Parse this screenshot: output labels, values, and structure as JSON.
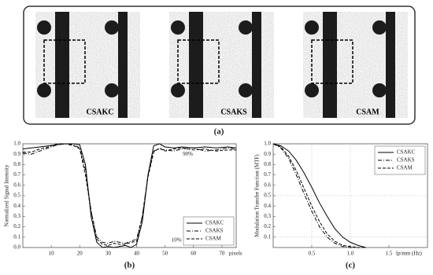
{
  "panel_a": {
    "images": [
      {
        "label": "CSAKC"
      },
      {
        "label": "CSAKS"
      },
      {
        "label": "CSAM"
      }
    ],
    "caption": "(a)"
  },
  "chart_data": [
    {
      "type": "line",
      "caption": "(b)",
      "y_label": "Normalized Signal Intensity",
      "x_label": "pixels",
      "x": [
        0,
        3,
        6,
        9,
        12,
        15,
        18,
        20,
        22,
        24,
        26,
        28,
        30,
        32,
        34,
        36,
        38,
        40,
        42,
        44,
        46,
        48,
        50,
        53,
        56,
        60,
        64,
        68,
        72,
        75
      ],
      "series": [
        {
          "name": "CSAKC",
          "color": "#000000",
          "dash": "solid",
          "values": [
            0.95,
            0.96,
            0.97,
            0.98,
            0.99,
            1.0,
            1.0,
            0.99,
            0.8,
            0.3,
            0.05,
            0.0,
            0.01,
            0.0,
            0.01,
            0.02,
            0.0,
            0.03,
            0.25,
            0.7,
            0.98,
            1.0,
            0.97,
            0.96,
            0.97,
            0.96,
            0.97,
            0.96,
            0.97,
            0.96
          ]
        },
        {
          "name": "CSAKS",
          "color": "#000000",
          "dash": "dashdot",
          "values": [
            0.91,
            0.9,
            0.93,
            0.96,
            0.99,
            1.0,
            0.99,
            0.96,
            0.75,
            0.35,
            0.1,
            0.05,
            0.04,
            0.06,
            0.05,
            0.04,
            0.06,
            0.08,
            0.3,
            0.7,
            0.93,
            0.95,
            0.94,
            0.93,
            0.95,
            0.96,
            0.93,
            0.94,
            0.96,
            0.95
          ]
        },
        {
          "name": "CSAM",
          "color": "#000000",
          "dash": "dashed",
          "values": [
            0.92,
            0.92,
            0.95,
            0.97,
            1.0,
            1.0,
            0.98,
            0.95,
            0.7,
            0.35,
            0.08,
            0.03,
            0.02,
            0.04,
            0.03,
            0.03,
            0.05,
            0.06,
            0.3,
            0.68,
            0.92,
            0.96,
            0.93,
            0.95,
            0.96,
            0.94,
            0.95,
            0.93,
            0.94,
            0.94
          ]
        }
      ],
      "xlim": [
        0,
        75
      ],
      "xticks": [
        10,
        20,
        30,
        40,
        50,
        60,
        70
      ],
      "ylim": [
        0,
        1
      ],
      "yticks": [
        {
          "value": 0,
          "label": "0.0"
        },
        0.1,
        0.2,
        0.3,
        0.4,
        0.5,
        0.6,
        0.7,
        0.8,
        0.9,
        {
          "value": 1,
          "label": "1.0"
        }
      ],
      "annotations": [
        {
          "text": "90%",
          "x": 58,
          "y": 0.9
        },
        {
          "text": "10%",
          "x": 54,
          "y": 0.07
        }
      ],
      "legend": "lower-right"
    },
    {
      "type": "line",
      "caption": "(c)",
      "y_label": "Modulation Transfer Function (MTF)",
      "x_label": "lp/mm (Hz)",
      "x": [
        0,
        0.1,
        0.2,
        0.3,
        0.4,
        0.5,
        0.6,
        0.7,
        0.8,
        0.9,
        1.0,
        1.1,
        1.2
      ],
      "series": [
        {
          "name": "CSAKC",
          "color": "#000000",
          "dash": "solid",
          "values": [
            1,
            0.98,
            0.93,
            0.84,
            0.72,
            0.58,
            0.43,
            0.3,
            0.18,
            0.1,
            0.05,
            0.02,
            0.0
          ]
        },
        {
          "name": "CSAKS",
          "color": "#000000",
          "dash": "dashdot",
          "values": [
            1,
            0.96,
            0.86,
            0.7,
            0.52,
            0.35,
            0.2,
            0.1,
            0.04,
            0.01,
            0,
            0,
            0
          ]
        },
        {
          "name": "CSAM",
          "color": "#000000",
          "dash": "dashed",
          "values": [
            1,
            0.97,
            0.88,
            0.74,
            0.57,
            0.4,
            0.25,
            0.13,
            0.06,
            0.02,
            0.01,
            0,
            0
          ]
        }
      ],
      "xlim": [
        0,
        2
      ],
      "xticks": [
        0.5,
        {
          "value": 1,
          "label": "1.0"
        },
        1.5
      ],
      "ylim": [
        0,
        1
      ],
      "yticks": [
        0.1,
        0.2,
        0.3,
        0.4,
        0.5,
        0.6,
        0.7,
        0.8,
        0.9,
        {
          "value": 1,
          "label": "1.0"
        }
      ],
      "ref_lines_x": [
        0.5,
        1
      ],
      "ref_lines_y": [
        0.1,
        0.5
      ],
      "legend": "upper-right"
    }
  ]
}
